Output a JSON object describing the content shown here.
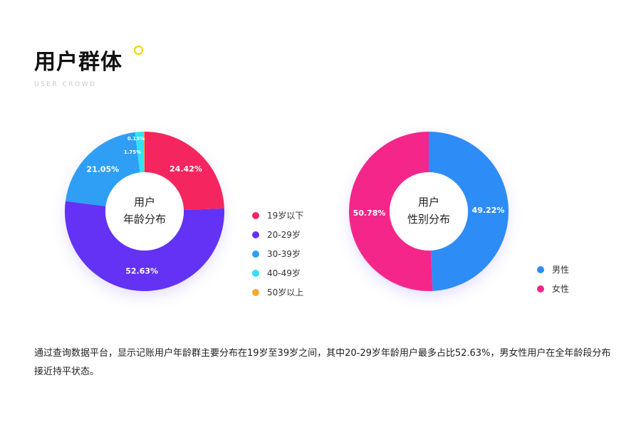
{
  "header": {
    "title": "用户群体",
    "subtitle": "USER CROWD"
  },
  "chart_data": [
    {
      "type": "pie",
      "center_label": [
        "用户",
        "年龄分布"
      ],
      "categories": [
        "19岁以下",
        "20-29岁",
        "30-39岁",
        "40-49岁",
        "50岁以上"
      ],
      "values": [
        24.42,
        52.63,
        21.05,
        1.75,
        0.15
      ],
      "labels": [
        "24.42%",
        "52.63%",
        "21.05%",
        "1.75%",
        "0.15%"
      ],
      "colors": [
        "#f5285f",
        "#6433f5",
        "#2e9ff5",
        "#2ee3f2",
        "#f7a932"
      ],
      "legend_position": "right"
    },
    {
      "type": "pie",
      "center_label": [
        "用户",
        "性别分布"
      ],
      "categories": [
        "男性",
        "女性"
      ],
      "values": [
        49.22,
        50.78
      ],
      "labels": [
        "49.22%",
        "50.78%"
      ],
      "colors": [
        "#2f8cf7",
        "#f5258a"
      ],
      "legend_position": "right"
    }
  ],
  "summary": "通过查询数据平台，显示记账用户年龄群主要分布在19岁至39岁之间，其中20-29岁年龄用户最多占比52.63%，男女性用户在全年龄段分布接近持平状态。"
}
